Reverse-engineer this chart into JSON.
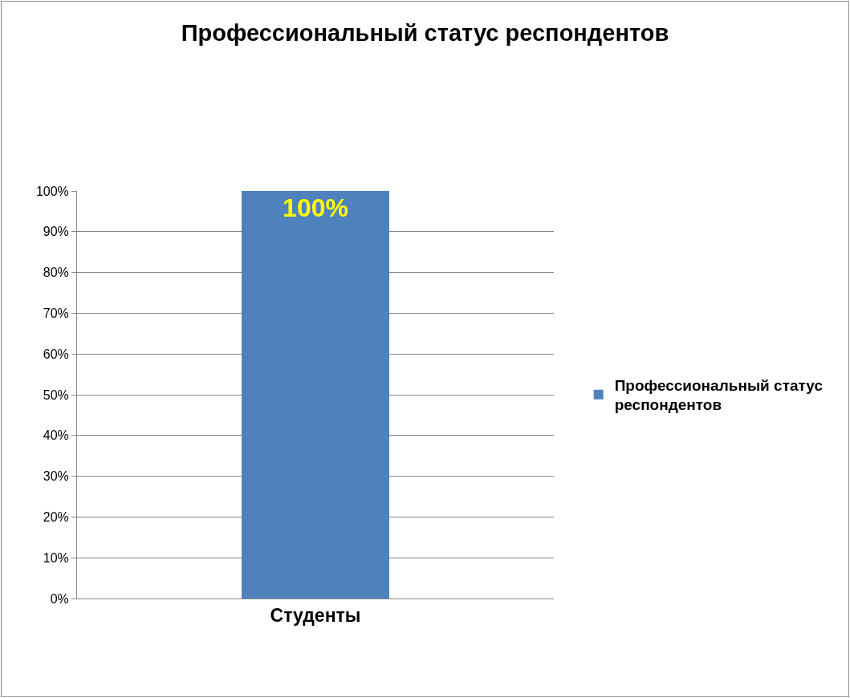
{
  "chart_data": {
    "type": "bar",
    "title": "Профессиональный статус респондентов",
    "categories": [
      "Студенты"
    ],
    "series": [
      {
        "name": "Профессиональный статус респондентов",
        "color": "#4f81bd",
        "values": [
          100
        ],
        "value_labels": [
          "100%"
        ]
      }
    ],
    "ylim": [
      0,
      100
    ],
    "yticks": [
      {
        "value": 0,
        "label": "0%"
      },
      {
        "value": 10,
        "label": "10%"
      },
      {
        "value": 20,
        "label": "20%"
      },
      {
        "value": 30,
        "label": "30%"
      },
      {
        "value": 40,
        "label": "40%"
      },
      {
        "value": 50,
        "label": "50%"
      },
      {
        "value": 60,
        "label": "60%"
      },
      {
        "value": 70,
        "label": "70%"
      },
      {
        "value": 80,
        "label": "80%"
      },
      {
        "value": 90,
        "label": "90%"
      },
      {
        "value": 100,
        "label": "100%"
      }
    ],
    "grid": true,
    "legend": "right"
  }
}
